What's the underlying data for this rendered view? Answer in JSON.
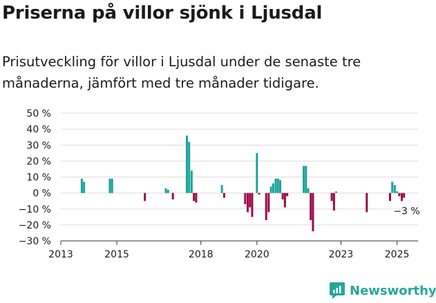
{
  "title": "Priserna på villor sjönk i Ljusdal",
  "subtitle": "Prisutveckling för villor i Ljusdal under de senaste tre månaderna, jämfört med tre månader tidigare.",
  "brand": "Newsworthy",
  "colors": {
    "positive": "#1aa39a",
    "negative": "#9c0a48",
    "grid": "#dcdcdc",
    "axis": "#333333",
    "brand": "#26a69a"
  },
  "chart_data": {
    "type": "bar",
    "title": "Priserna på villor sjönk i Ljusdal",
    "xlabel": "",
    "ylabel": "",
    "ylim": [
      -30,
      50
    ],
    "yticks": [
      {
        "value": 50,
        "label": "50 %"
      },
      {
        "value": 40,
        "label": "40 %"
      },
      {
        "value": 30,
        "label": "30 %"
      },
      {
        "value": 20,
        "label": "20 %"
      },
      {
        "value": 10,
        "label": "10 %"
      },
      {
        "value": 0,
        "label": "0 %"
      },
      {
        "value": -10,
        "label": "−10 %"
      },
      {
        "value": -20,
        "label": "−20 %"
      },
      {
        "value": -30,
        "label": "−30 %"
      }
    ],
    "xlim": [
      2013.0,
      2025.75
    ],
    "xticks": [
      {
        "value": 2013,
        "label": "2013"
      },
      {
        "value": 2015,
        "label": "2015"
      },
      {
        "value": 2018,
        "label": "2018"
      },
      {
        "value": 2020,
        "label": "2020"
      },
      {
        "value": 2023,
        "label": "2023"
      },
      {
        "value": 2025,
        "label": "2025"
      }
    ],
    "grid": true,
    "x": [
      2013.75,
      2013.83,
      2014.75,
      2014.83,
      2016.0,
      2016.75,
      2016.83,
      2017.0,
      2017.5,
      2017.58,
      2017.67,
      2017.75,
      2017.83,
      2018.75,
      2018.83,
      2019.58,
      2019.67,
      2019.75,
      2019.83,
      2020.0,
      2020.08,
      2020.33,
      2020.42,
      2020.5,
      2020.58,
      2020.67,
      2020.75,
      2020.83,
      2020.92,
      2021.0,
      2021.08,
      2021.67,
      2021.75,
      2021.83,
      2021.92,
      2022.0,
      2022.67,
      2022.75,
      2022.83,
      2023.92,
      2024.75,
      2024.83,
      2024.92,
      2025.0,
      2025.08,
      2025.17,
      2025.25
    ],
    "values": [
      9,
      7,
      9,
      9,
      -5,
      3,
      2,
      -4,
      36,
      32,
      14,
      -5,
      -6,
      5,
      -3,
      -7,
      -12,
      -9,
      -15,
      25,
      -1,
      -17,
      -12,
      4,
      6,
      9,
      9,
      8,
      -4,
      -9,
      -2,
      17,
      17,
      3,
      -17,
      -24,
      -5,
      -11,
      1,
      -12,
      -5,
      7,
      5,
      1,
      -2,
      -5,
      -3
    ],
    "annotation": {
      "x": 2025.25,
      "value": -3,
      "label": "−3 %"
    }
  }
}
